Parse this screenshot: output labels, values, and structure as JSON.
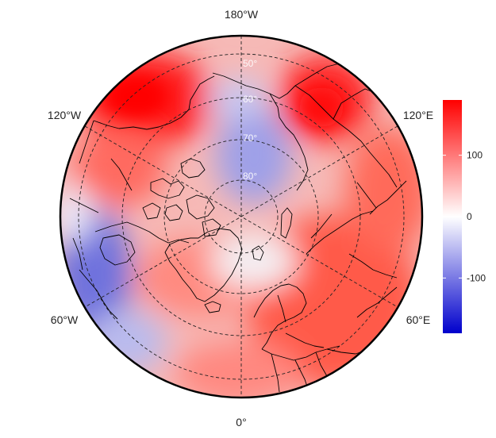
{
  "map": {
    "projection": "north polar stereographic",
    "center": "North Pole",
    "graticule_style": "dashed",
    "coastline_color": "#000000",
    "longitude_labels": {
      "top": "180°W",
      "bottom": "0°",
      "upper_left": "120°W",
      "upper_right": "120°E",
      "lower_left": "60°W",
      "lower_right": "60°E"
    },
    "latitude_labels": [
      "80°",
      "70°",
      "60°",
      "50°"
    ]
  },
  "colorbar": {
    "palette": [
      "#0000cc",
      "#ffffff",
      "#ff0000"
    ],
    "min": -190,
    "max": 190,
    "ticks": [
      {
        "value": 100,
        "label": "100"
      },
      {
        "value": 0,
        "label": "0"
      },
      {
        "value": -100,
        "label": "-100"
      }
    ]
  },
  "anomaly_field": {
    "warm_regions": [
      "Alaska",
      "Eastern Siberia",
      "Europe",
      "Western Russia",
      "Central Siberia"
    ],
    "cold_regions": [
      "Eastern Canada",
      "Labrador Sea",
      "Arctic Ocean near Pole"
    ]
  }
}
